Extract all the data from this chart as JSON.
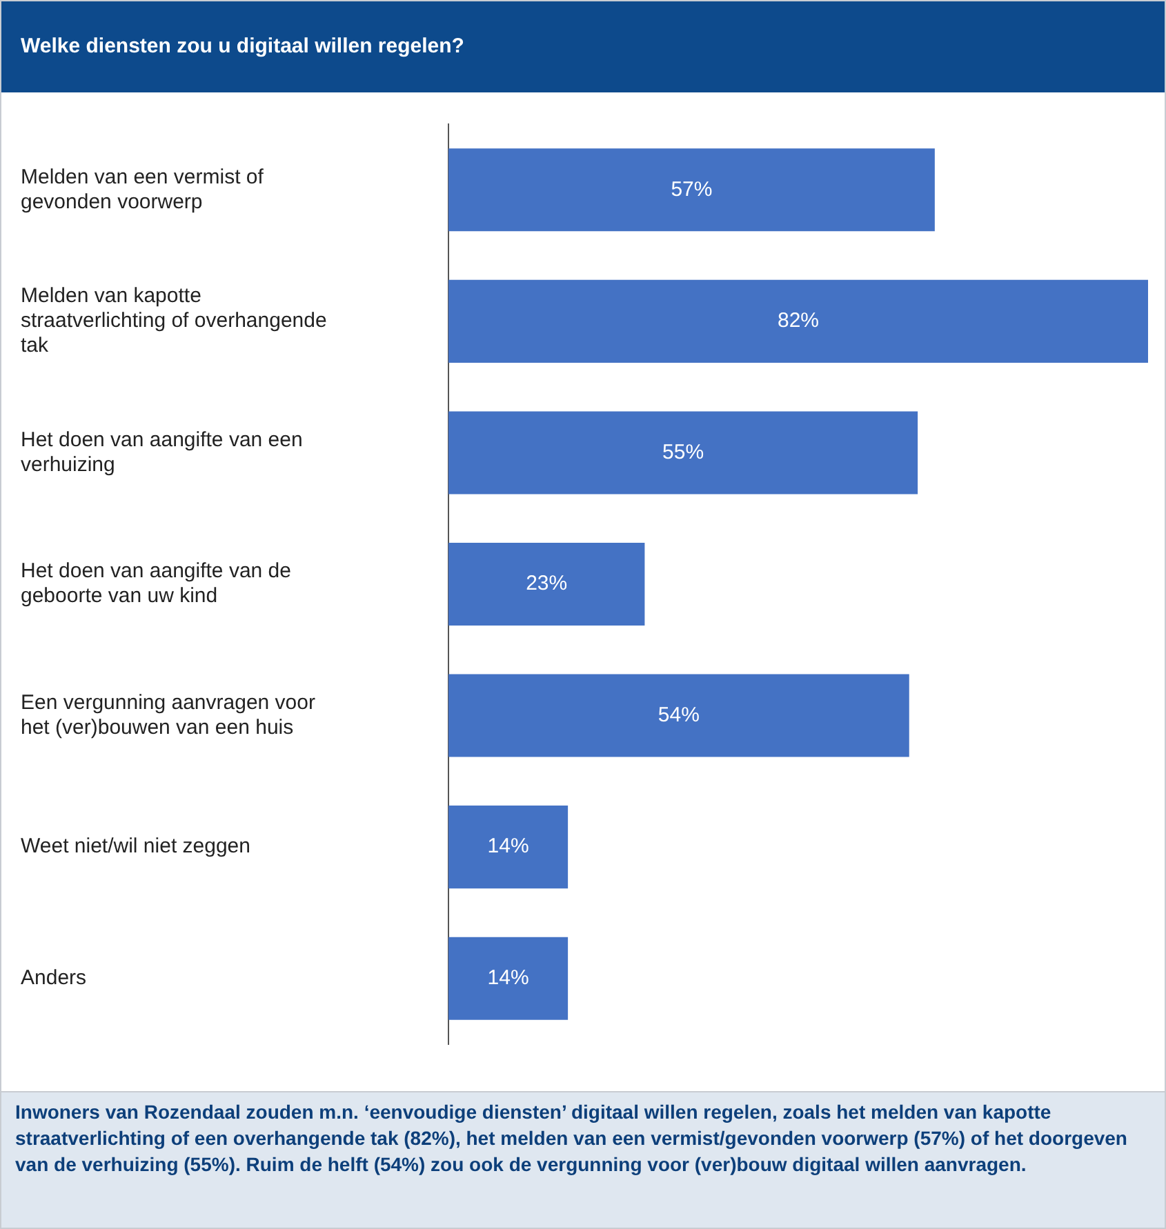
{
  "chart_data": {
    "type": "bar",
    "orientation": "horizontal",
    "title": "Welke diensten zou u digitaal willen regelen?",
    "categories": [
      "Melden van een vermist of gevonden voorwerp",
      "Melden van kapotte straatverlichting of overhangende tak",
      "Het doen van aangifte van een verhuizing",
      "Het doen van aangifte van de geboorte van uw kind",
      "Een vergunning aanvragen voor het (ver)bouwen van een huis",
      "Weet niet/wil niet zeggen",
      "Anders"
    ],
    "values": [
      57,
      82,
      55,
      23,
      54,
      14,
      14
    ],
    "value_labels": [
      "57%",
      "82%",
      "55%",
      "23%",
      "54%",
      "14%",
      "14%"
    ],
    "color": "#4472c4",
    "grid": false,
    "legend": false,
    "annotations": [
      "Inwoners van Rozendaal zouden m.n. ‘eenvoudige diensten’ digitaal willen regelen, zoals het melden van kapotte straatverlichting of een overhangende tak (82%), het melden van een vermist/gevonden voorwerp (57%) of het doorgeven van de verhuizing (55%). Ruim de helft (54%) zou ook de vergunning voor (ver)bouw digitaal willen aanvragen."
    ]
  }
}
